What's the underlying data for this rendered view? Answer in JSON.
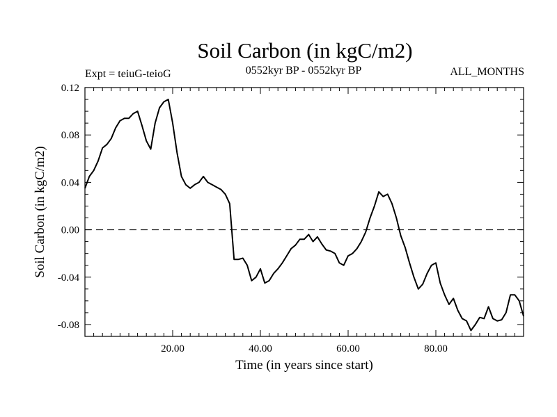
{
  "chart_data": {
    "type": "line",
    "title": "Soil Carbon (in kgC/m2)",
    "subtitle_left": "Expt = teiuG-teioG",
    "subtitle_center": "0552kyr BP - 0552kyr BP",
    "subtitle_right": "ALL_MONTHS",
    "xlabel": "Time (in years since start)",
    "ylabel": "Soil Carbon (in kgC/m2)",
    "xlim": [
      0,
      100
    ],
    "ylim": [
      -0.09,
      0.12
    ],
    "xticks": [
      20,
      40,
      60,
      80
    ],
    "xtick_labels": [
      "20.00",
      "40.00",
      "60.00",
      "80.00"
    ],
    "yticks": [
      0.12,
      0.08,
      0.04,
      0.0,
      -0.04,
      -0.08
    ],
    "ytick_labels": [
      "0.12",
      "0.08",
      "0.04",
      "0.00",
      "-0.04",
      "-0.08"
    ],
    "reference_line": {
      "y": 0.0,
      "style": "dashed"
    },
    "series": [
      {
        "name": "Soil Carbon",
        "x": [
          0,
          1,
          2,
          3,
          4,
          5,
          6,
          7,
          8,
          9,
          10,
          11,
          12,
          13,
          14,
          15,
          16,
          17,
          18,
          19,
          20,
          21,
          22,
          23,
          24,
          25,
          26,
          27,
          28,
          29,
          30,
          31,
          32,
          33,
          34,
          35,
          36,
          37,
          38,
          39,
          40,
          41,
          42,
          43,
          44,
          45,
          46,
          47,
          48,
          49,
          50,
          51,
          52,
          53,
          54,
          55,
          56,
          57,
          58,
          59,
          60,
          61,
          62,
          63,
          64,
          65,
          66,
          67,
          68,
          69,
          70,
          71,
          72,
          73,
          74,
          75,
          76,
          77,
          78,
          79,
          80,
          81,
          82,
          83,
          84,
          85,
          86,
          87,
          88,
          89,
          90,
          91,
          92,
          93,
          94,
          95,
          96,
          97,
          98,
          99,
          100
        ],
        "values": [
          0.035,
          0.045,
          0.05,
          0.058,
          0.069,
          0.072,
          0.077,
          0.086,
          0.092,
          0.094,
          0.094,
          0.098,
          0.1,
          0.088,
          0.075,
          0.068,
          0.09,
          0.103,
          0.108,
          0.11,
          0.09,
          0.065,
          0.045,
          0.038,
          0.035,
          0.038,
          0.04,
          0.045,
          0.04,
          0.038,
          0.036,
          0.034,
          0.03,
          0.022,
          -0.025,
          -0.025,
          -0.024,
          -0.03,
          -0.043,
          -0.04,
          -0.033,
          -0.045,
          -0.043,
          -0.037,
          -0.033,
          -0.028,
          -0.022,
          -0.016,
          -0.013,
          -0.008,
          -0.008,
          -0.004,
          -0.01,
          -0.006,
          -0.012,
          -0.017,
          -0.018,
          -0.02,
          -0.028,
          -0.03,
          -0.022,
          -0.02,
          -0.016,
          -0.01,
          -0.002,
          0.01,
          0.02,
          0.032,
          0.028,
          0.03,
          0.022,
          0.01,
          -0.005,
          -0.015,
          -0.028,
          -0.04,
          -0.05,
          -0.046,
          -0.037,
          -0.03,
          -0.028,
          -0.045,
          -0.055,
          -0.063,
          -0.058,
          -0.068,
          -0.075,
          -0.077,
          -0.085,
          -0.08,
          -0.074,
          -0.075,
          -0.065,
          -0.075,
          -0.077,
          -0.076,
          -0.07,
          -0.055,
          -0.055,
          -0.06,
          -0.073
        ]
      }
    ]
  }
}
